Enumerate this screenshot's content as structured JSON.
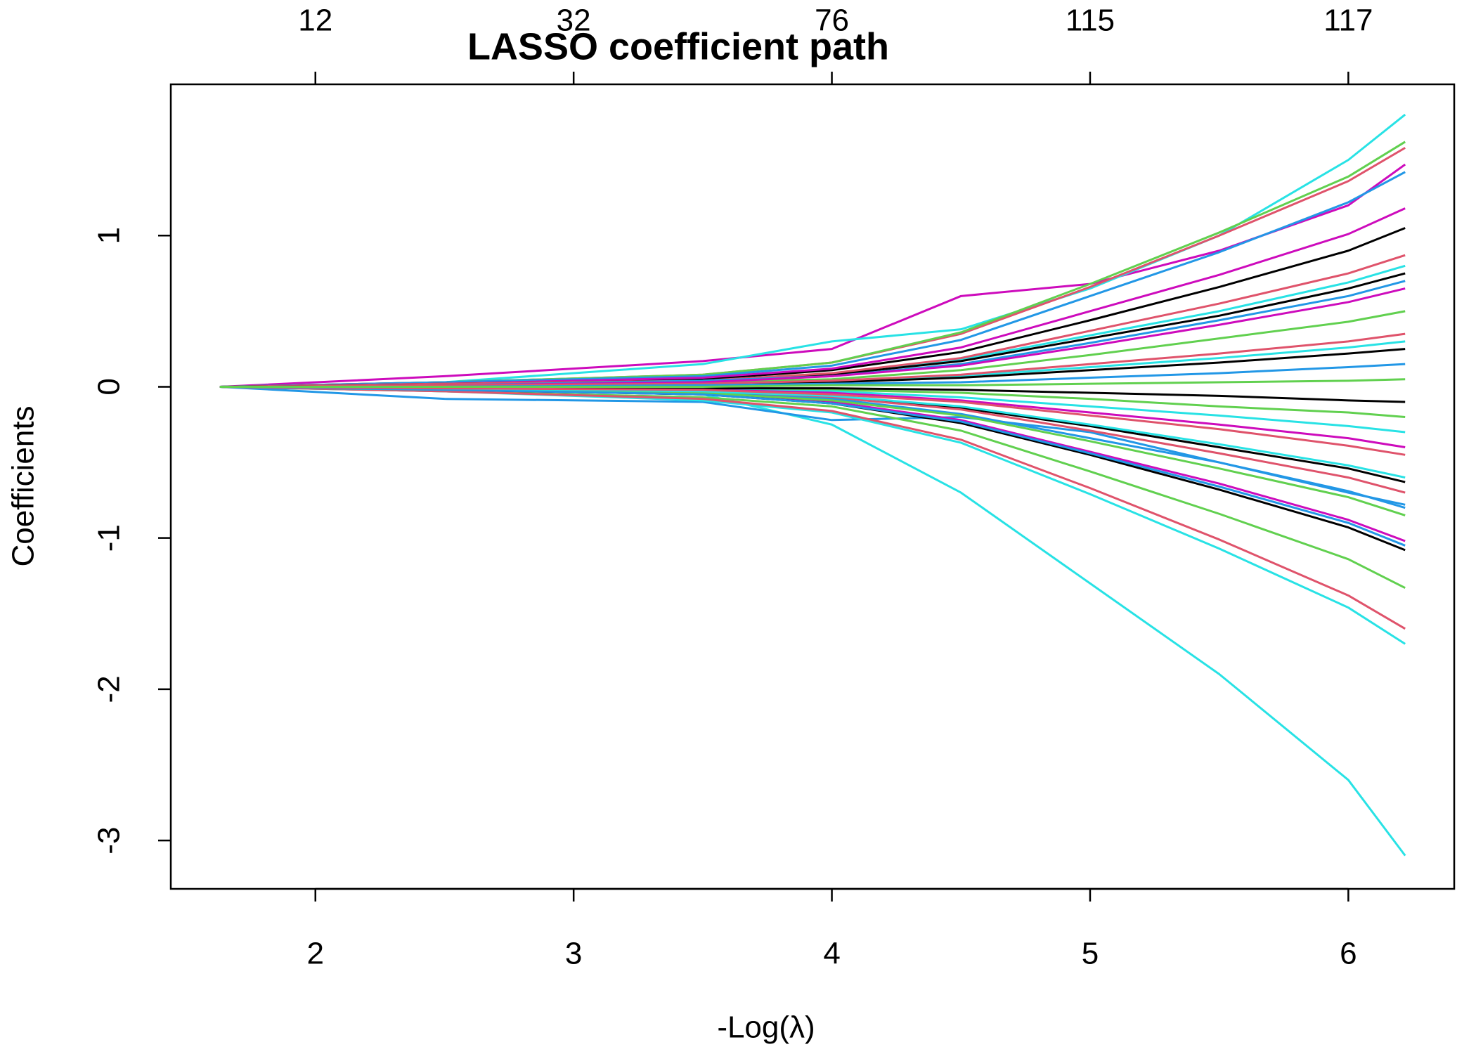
{
  "chart_data": {
    "type": "line",
    "title": "LASSO coefficient path",
    "x_label": "-Log(λ)",
    "y_label": "Coefficients",
    "x": [
      1.63,
      2.5,
      3.5,
      4,
      4.5,
      5,
      5.5,
      6,
      6.22
    ],
    "xlim": [
      1.44,
      6.41
    ],
    "ylim": [
      -3.32,
      2.0
    ],
    "xticks": [
      2,
      3,
      4,
      5,
      6
    ],
    "yticks": [
      -3,
      -2,
      -1,
      0,
      1
    ],
    "x2ticks": [
      {
        "value": 2,
        "label": "12"
      },
      {
        "value": 3,
        "label": "32"
      },
      {
        "value": 4,
        "label": "76"
      },
      {
        "value": 5,
        "label": "115"
      },
      {
        "value": 6,
        "label": "117"
      }
    ],
    "series": [
      {
        "color": "#CD0BBC",
        "values": [
          0,
          0.07,
          0.17,
          0.25,
          0.6,
          0.68,
          0.9,
          1.2,
          1.47
        ]
      },
      {
        "color": "#28E2E5",
        "values": [
          0,
          -0.02,
          -0.05,
          -0.25,
          -0.7,
          -1.3,
          -1.9,
          -2.6,
          -3.1
        ]
      },
      {
        "color": "#2297E6",
        "values": [
          0,
          -0.08,
          -0.1,
          -0.22,
          -0.2,
          -0.3,
          -0.5,
          -0.7,
          -0.78
        ]
      },
      {
        "color": "#28E2E5",
        "values": [
          0,
          0.03,
          0.15,
          0.3,
          0.38,
          0.65,
          1.0,
          1.5,
          1.8
        ]
      },
      {
        "color": "#000000",
        "values": [
          0,
          0.02,
          0.05,
          0.11,
          0.23,
          0.44,
          0.66,
          0.9,
          1.05
        ]
      },
      {
        "color": "#DF536B",
        "values": [
          0,
          0.03,
          0.08,
          0.16,
          0.35,
          0.66,
          1.0,
          1.36,
          1.58
        ]
      },
      {
        "color": "#61D04F",
        "values": [
          0,
          0.03,
          0.08,
          0.16,
          0.36,
          0.68,
          1.02,
          1.39,
          1.62
        ]
      },
      {
        "color": "#2297E6",
        "values": [
          0,
          0.03,
          0.07,
          0.14,
          0.31,
          0.6,
          0.89,
          1.22,
          1.42
        ]
      },
      {
        "color": "#28E2E5",
        "values": [
          0,
          0.02,
          0.04,
          0.08,
          0.18,
          0.34,
          0.5,
          0.69,
          0.8
        ]
      },
      {
        "color": "#CD0BBC",
        "values": [
          0,
          0.02,
          0.06,
          0.12,
          0.26,
          0.5,
          0.74,
          1.01,
          1.18
        ]
      },
      {
        "color": "#000000",
        "values": [
          0,
          0.02,
          0.04,
          0.08,
          0.17,
          0.32,
          0.47,
          0.65,
          0.75
        ]
      },
      {
        "color": "#DF536B",
        "values": [
          0,
          0.02,
          0.04,
          0.09,
          0.19,
          0.37,
          0.55,
          0.75,
          0.87
        ]
      },
      {
        "color": "#61D04F",
        "values": [
          0,
          0.01,
          0.03,
          0.05,
          0.11,
          0.21,
          0.32,
          0.43,
          0.5
        ]
      },
      {
        "color": "#2297E6",
        "values": [
          0,
          0.01,
          0.04,
          0.07,
          0.15,
          0.29,
          0.44,
          0.6,
          0.7
        ]
      },
      {
        "color": "#28E2E5",
        "values": [
          0,
          0.01,
          0.02,
          0.03,
          0.07,
          0.13,
          0.19,
          0.26,
          0.3
        ]
      },
      {
        "color": "#CD0BBC",
        "values": [
          0,
          0.01,
          0.03,
          0.07,
          0.14,
          0.27,
          0.41,
          0.56,
          0.65
        ]
      },
      {
        "color": "#000000",
        "values": [
          0,
          0.01,
          0.01,
          0.03,
          0.06,
          0.11,
          0.16,
          0.22,
          0.25
        ]
      },
      {
        "color": "#DF536B",
        "values": [
          0,
          0.01,
          0.02,
          0.04,
          0.08,
          0.15,
          0.22,
          0.3,
          0.35
        ]
      },
      {
        "color": "#61D04F",
        "values": [
          0,
          0,
          -0.01,
          -0.02,
          -0.04,
          -0.08,
          -0.13,
          -0.17,
          -0.2
        ]
      },
      {
        "color": "#2297E6",
        "values": [
          0,
          0,
          0.01,
          0.02,
          0.03,
          0.06,
          0.09,
          0.13,
          0.15
        ]
      },
      {
        "color": "#28E2E5",
        "values": [
          0,
          -0.01,
          -0.02,
          -0.03,
          -0.07,
          -0.13,
          -0.19,
          -0.26,
          -0.3
        ]
      },
      {
        "color": "#CD0BBC",
        "values": [
          0,
          -0.01,
          -0.02,
          -0.04,
          -0.09,
          -0.17,
          -0.25,
          -0.34,
          -0.4
        ]
      },
      {
        "color": "#000000",
        "values": [
          0,
          -0.01,
          -0.03,
          -0.06,
          -0.14,
          -0.26,
          -0.4,
          -0.54,
          -0.63
        ]
      },
      {
        "color": "#DF536B",
        "values": [
          0,
          -0.01,
          -0.04,
          -0.07,
          -0.15,
          -0.29,
          -0.44,
          -0.6,
          -0.7
        ]
      },
      {
        "color": "#61D04F",
        "values": [
          0,
          -0.03,
          -0.07,
          -0.13,
          -0.29,
          -0.56,
          -0.84,
          -1.14,
          -1.33
        ]
      },
      {
        "color": "#2297E6",
        "values": [
          0,
          -0.02,
          -0.04,
          -0.08,
          -0.18,
          -0.34,
          -0.5,
          -0.69,
          -0.8
        ]
      },
      {
        "color": "#28E2E5",
        "values": [
          0,
          -0.03,
          -0.09,
          -0.17,
          -0.37,
          -0.71,
          -1.07,
          -1.46,
          -1.7
        ]
      },
      {
        "color": "#CD0BBC",
        "values": [
          0,
          -0.02,
          -0.05,
          -0.1,
          -0.22,
          -0.43,
          -0.64,
          -0.88,
          -1.02
        ]
      },
      {
        "color": "#000000",
        "values": [
          0,
          -0.02,
          -0.05,
          -0.11,
          -0.24,
          -0.45,
          -0.68,
          -0.93,
          -1.08
        ]
      },
      {
        "color": "#DF536B",
        "values": [
          0,
          -0.03,
          -0.08,
          -0.16,
          -0.35,
          -0.67,
          -1.01,
          -1.38,
          -1.6
        ]
      },
      {
        "color": "#61D04F",
        "values": [
          0,
          -0.02,
          -0.04,
          -0.09,
          -0.19,
          -0.36,
          -0.54,
          -0.73,
          -0.85
        ]
      },
      {
        "color": "#2297E6",
        "values": [
          0,
          -0.02,
          -0.05,
          -0.11,
          -0.23,
          -0.44,
          -0.66,
          -0.9,
          -1.05
        ]
      },
      {
        "color": "#28E2E5",
        "values": [
          0,
          -0.01,
          -0.03,
          -0.06,
          -0.13,
          -0.25,
          -0.38,
          -0.52,
          -0.6
        ]
      },
      {
        "color": "#000000",
        "values": [
          0,
          0,
          -0.01,
          -0.01,
          -0.02,
          -0.04,
          -0.06,
          -0.09,
          -0.1
        ]
      },
      {
        "color": "#DF536B",
        "values": [
          0,
          -0.01,
          -0.02,
          -0.05,
          -0.1,
          -0.19,
          -0.28,
          -0.39,
          -0.45
        ]
      },
      {
        "color": "#61D04F",
        "values": [
          0,
          0,
          0,
          0.01,
          0.01,
          0.02,
          0.03,
          0.04,
          0.05
        ]
      }
    ]
  }
}
